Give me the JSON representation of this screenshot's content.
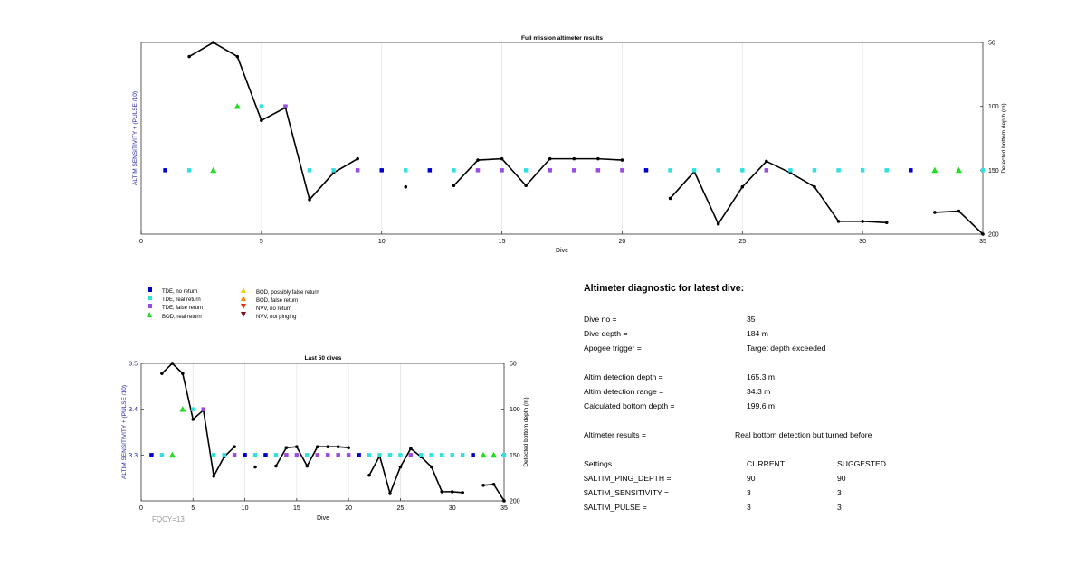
{
  "chart_data": [
    {
      "type": "line",
      "title": "Full mission altimeter results",
      "xlabel": "Dive",
      "ylabel": "ALTIM SENSITIVITY + (PULSE /10)",
      "y2label": "Detected bottom depth (m)",
      "xlim": [
        0,
        35
      ],
      "y2lim": [
        50,
        200
      ],
      "y2_reversed": true,
      "xticks": [
        "0",
        "5",
        "10",
        "15",
        "20",
        "25",
        "30",
        "35"
      ],
      "y2ticks": [
        "50",
        "100",
        "150",
        "200"
      ],
      "grid": "vertical",
      "series": [
        {
          "name": "Detected bottom depth",
          "color": "#000000",
          "points": [
            [
              2,
              61
            ],
            [
              3,
              50
            ],
            [
              4,
              61
            ],
            [
              5,
              111
            ],
            [
              6,
              101
            ],
            [
              7,
              173
            ],
            [
              8,
              152
            ],
            [
              9,
              141
            ],
            [
              11,
              163
            ],
            [
              13,
              162
            ],
            [
              14,
              142
            ],
            [
              15,
              141
            ],
            [
              16,
              162
            ],
            [
              17,
              141
            ],
            [
              18,
              141
            ],
            [
              19,
              141
            ],
            [
              20,
              142
            ],
            [
              22,
              172
            ],
            [
              23,
              151
            ],
            [
              24,
              192
            ],
            [
              25,
              163
            ],
            [
              26,
              143
            ],
            [
              27,
              152
            ],
            [
              28,
              163
            ],
            [
              29,
              190
            ],
            [
              30,
              190
            ],
            [
              31,
              191
            ],
            [
              33,
              183
            ],
            [
              34,
              182
            ],
            [
              35,
              200
            ]
          ]
        },
        {
          "name": "TDE, no return",
          "color": "#0000cc",
          "marker": "square",
          "points": [
            [
              1,
              150
            ],
            [
              10,
              150
            ],
            [
              12,
              150
            ],
            [
              21,
              150
            ],
            [
              32,
              150
            ]
          ]
        },
        {
          "name": "TDE, real return",
          "color": "#33e0e0",
          "marker": "square",
          "points": [
            [
              2,
              150
            ],
            [
              5,
              100
            ],
            [
              7,
              150
            ],
            [
              8,
              150
            ],
            [
              11,
              150
            ],
            [
              13,
              150
            ],
            [
              16,
              150
            ],
            [
              22,
              150
            ],
            [
              23,
              150
            ],
            [
              24,
              150
            ],
            [
              25,
              150
            ],
            [
              27,
              150
            ],
            [
              28,
              150
            ],
            [
              29,
              150
            ],
            [
              30,
              150
            ],
            [
              31,
              150
            ],
            [
              35,
              150
            ]
          ]
        },
        {
          "name": "TDE, false return",
          "color": "#9a4be0",
          "marker": "square",
          "points": [
            [
              6,
              100
            ],
            [
              9,
              150
            ],
            [
              14,
              150
            ],
            [
              15,
              150
            ],
            [
              17,
              150
            ],
            [
              18,
              150
            ],
            [
              19,
              150
            ],
            [
              20,
              150
            ],
            [
              26,
              150
            ]
          ]
        },
        {
          "name": "BOD, real return",
          "color": "#22dd22",
          "marker": "triangle",
          "points": [
            [
              3,
              150
            ],
            [
              4,
              100
            ],
            [
              33,
              150
            ],
            [
              34,
              150
            ]
          ]
        }
      ]
    },
    {
      "type": "line",
      "title": "Last 50 dives",
      "xlabel": "Dive",
      "ylabel": "ALTIM SENSITIVITY + (PULSE /10)",
      "y2label": "Detected bottom depth (m)",
      "xlim": [
        0,
        35
      ],
      "ylim": [
        3.2,
        3.5
      ],
      "y2lim": [
        50,
        200
      ],
      "y2_reversed": true,
      "xticks": [
        "0",
        "5",
        "10",
        "15",
        "20",
        "25",
        "30",
        "35"
      ],
      "yticks": [
        "3.3",
        "3.4",
        "3.5"
      ],
      "y2ticks": [
        "50",
        "100",
        "150",
        "200"
      ],
      "grid": "vertical",
      "annotation": "FQCY=13",
      "series": [
        {
          "name": "Detected bottom depth",
          "color": "#000000",
          "points": [
            [
              2,
              61
            ],
            [
              3,
              50
            ],
            [
              4,
              61
            ],
            [
              5,
              111
            ],
            [
              6,
              101
            ],
            [
              7,
              173
            ],
            [
              8,
              152
            ],
            [
              9,
              141
            ],
            [
              11,
              163
            ],
            [
              13,
              162
            ],
            [
              14,
              142
            ],
            [
              15,
              141
            ],
            [
              16,
              162
            ],
            [
              17,
              141
            ],
            [
              18,
              141
            ],
            [
              19,
              141
            ],
            [
              20,
              142
            ],
            [
              22,
              172
            ],
            [
              23,
              151
            ],
            [
              24,
              192
            ],
            [
              25,
              163
            ],
            [
              26,
              143
            ],
            [
              27,
              152
            ],
            [
              28,
              163
            ],
            [
              29,
              190
            ],
            [
              30,
              190
            ],
            [
              31,
              191
            ],
            [
              33,
              183
            ],
            [
              34,
              182
            ],
            [
              35,
              200
            ]
          ]
        },
        {
          "name": "TDE, no return",
          "color": "#0000cc",
          "marker": "square",
          "points": [
            [
              1,
              150
            ],
            [
              10,
              150
            ],
            [
              12,
              150
            ],
            [
              21,
              150
            ],
            [
              32,
              150
            ]
          ]
        },
        {
          "name": "TDE, real return",
          "color": "#33e0e0",
          "marker": "square",
          "points": [
            [
              2,
              150
            ],
            [
              5,
              100
            ],
            [
              7,
              150
            ],
            [
              8,
              150
            ],
            [
              11,
              150
            ],
            [
              13,
              150
            ],
            [
              16,
              150
            ],
            [
              22,
              150
            ],
            [
              23,
              150
            ],
            [
              24,
              150
            ],
            [
              25,
              150
            ],
            [
              27,
              150
            ],
            [
              28,
              150
            ],
            [
              29,
              150
            ],
            [
              30,
              150
            ],
            [
              31,
              150
            ],
            [
              35,
              150
            ]
          ]
        },
        {
          "name": "TDE, false return",
          "color": "#9a4be0",
          "marker": "square",
          "points": [
            [
              6,
              100
            ],
            [
              9,
              150
            ],
            [
              14,
              150
            ],
            [
              15,
              150
            ],
            [
              17,
              150
            ],
            [
              18,
              150
            ],
            [
              19,
              150
            ],
            [
              20,
              150
            ],
            [
              26,
              150
            ]
          ]
        },
        {
          "name": "BOD, real return",
          "color": "#22dd22",
          "marker": "triangle",
          "points": [
            [
              3,
              150
            ],
            [
              4,
              100
            ],
            [
              33,
              150
            ],
            [
              34,
              150
            ]
          ]
        }
      ]
    }
  ],
  "legend": [
    {
      "label": "TDE, no return",
      "color": "#0000cc",
      "marker": "square"
    },
    {
      "label": "TDE, real return",
      "color": "#33e0e0",
      "marker": "square"
    },
    {
      "label": "TDE, false return",
      "color": "#9a4be0",
      "marker": "square"
    },
    {
      "label": "BOD, real return",
      "color": "#22dd22",
      "marker": "triangle-up"
    },
    {
      "label": "BOD, possibly false return",
      "color": "#f0d000",
      "marker": "triangle-up"
    },
    {
      "label": "BOD, false return",
      "color": "#f08a00",
      "marker": "triangle-up"
    },
    {
      "label": "NVV, no return",
      "color": "#e03010",
      "marker": "triangle-down"
    },
    {
      "label": "NVV, not pinging",
      "color": "#7a1010",
      "marker": "triangle-down"
    }
  ],
  "diagnostic": {
    "title": "Altimeter diagnostic for latest dive:",
    "rows": [
      {
        "label": "Dive no =",
        "value": "35"
      },
      {
        "label": "Dive depth =",
        "value": "184 m"
      },
      {
        "label": "Apogee trigger =",
        "value": "Target depth exceeded"
      },
      {
        "label": "Altim detection depth =",
        "value": "165.3 m"
      },
      {
        "label": "Altim detection range =",
        "value": "34.3 m"
      },
      {
        "label": "Calculated bottom depth =",
        "value": "199.6 m"
      },
      {
        "label": "Altimeter results =",
        "value": "Real bottom detection but turned before"
      }
    ],
    "settings_header": {
      "label": "Settings",
      "current": "CURRENT",
      "suggested": "SUGGESTED"
    },
    "settings": [
      {
        "label": "$ALTIM_PING_DEPTH =",
        "current": "90",
        "suggested": "90"
      },
      {
        "label": "$ALTIM_SENSITIVITY =",
        "current": "3",
        "suggested": "3"
      },
      {
        "label": "$ALTIM_PULSE =",
        "current": "3",
        "suggested": "3"
      }
    ]
  },
  "colors": {
    "ylabel": "#2222aa",
    "annotation": "#999999",
    "grid": "#e6e6e6"
  }
}
